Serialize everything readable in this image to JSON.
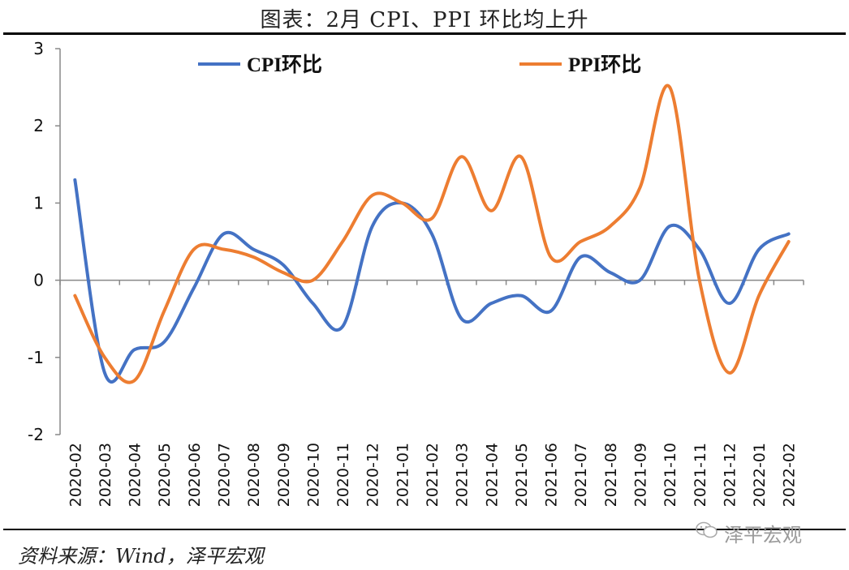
{
  "header": {
    "title": "图表：2月 CPI、PPI 环比均上升"
  },
  "footer": {
    "source": "资料来源：Wind，泽平宏观",
    "watermark": "泽平宏观"
  },
  "chart_data": {
    "type": "line",
    "title": "图表：2月 CPI、PPI 环比均上升",
    "xlabel": "",
    "ylabel": "",
    "ylim": [
      -2,
      3
    ],
    "yticks": [
      -2,
      -1,
      0,
      1,
      2,
      3
    ],
    "grid": false,
    "legend_position": "top",
    "categories": [
      "2020-02",
      "2020-03",
      "2020-04",
      "2020-05",
      "2020-06",
      "2020-07",
      "2020-08",
      "2020-09",
      "2020-10",
      "2020-11",
      "2020-12",
      "2021-01",
      "2021-02",
      "2021-03",
      "2021-04",
      "2021-05",
      "2021-06",
      "2021-07",
      "2021-08",
      "2021-09",
      "2021-10",
      "2021-11",
      "2021-12",
      "2022-01",
      "2022-02"
    ],
    "series": [
      {
        "name": "CPI环比",
        "color": "#4472C4",
        "values": [
          1.3,
          -1.2,
          -0.9,
          -0.8,
          -0.1,
          0.6,
          0.4,
          0.2,
          -0.3,
          -0.6,
          0.7,
          1.0,
          0.6,
          -0.5,
          -0.3,
          -0.2,
          -0.4,
          0.3,
          0.1,
          0.0,
          0.7,
          0.4,
          -0.3,
          0.4,
          0.6
        ]
      },
      {
        "name": "PPI环比",
        "color": "#ED7D31",
        "values": [
          -0.2,
          -1.0,
          -1.3,
          -0.4,
          0.4,
          0.4,
          0.3,
          0.1,
          0.0,
          0.5,
          1.1,
          1.0,
          0.8,
          1.6,
          0.9,
          1.6,
          0.3,
          0.5,
          0.7,
          1.2,
          2.5,
          0.0,
          -1.2,
          -0.2,
          0.5
        ]
      }
    ]
  }
}
